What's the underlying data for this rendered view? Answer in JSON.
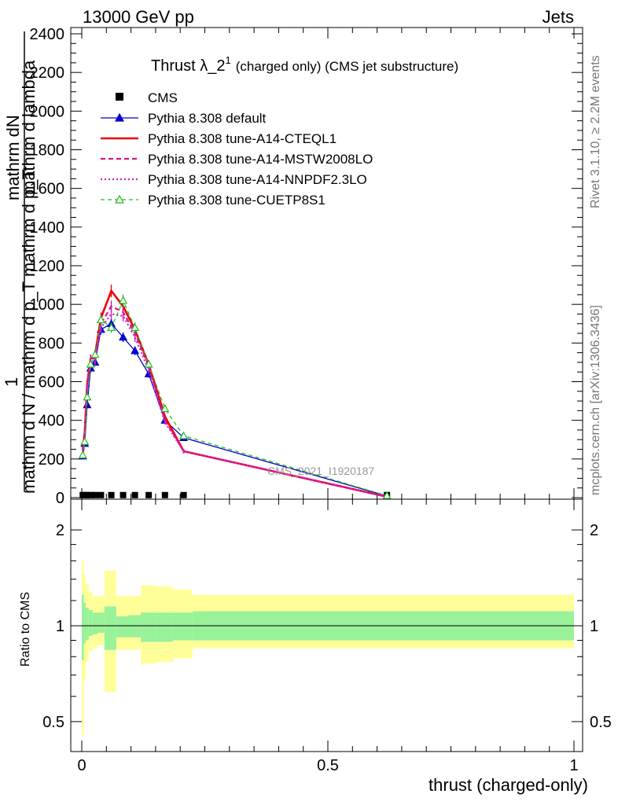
{
  "header": {
    "left": "13000 GeV pp",
    "right": "Jets"
  },
  "side_text": {
    "top": "Rivet 3.1.10, ≥ 2.2M events",
    "bottom": "mcplots.cern.ch [arXiv:1306.3436]"
  },
  "watermark": "CMS_2021_I1920187",
  "colors": {
    "cms": "#000000",
    "default": "#0000cc",
    "cteql1": "#ee0000",
    "mstw": "#e0108a",
    "nnpdf": "#cc22cc",
    "cuetp8s1": "#22bb22",
    "band_outer": "#ffff99",
    "band_inner": "#99f299"
  },
  "chart_data": [
    {
      "type": "line",
      "title": "Thrust λ_2",
      "title_sup": "1",
      "title_suffix": "(charged only) (CMS jet substructure)",
      "ylabel_top": "mathrm dN",
      "ylabel_top2": "mathrm d lambda",
      "ylabel_fraction_one": "1",
      "ylabel_main": "mathrm d N / mathrm d p_T mathrm d p_T",
      "xlim": [
        0,
        1
      ],
      "ylim": [
        0,
        2400
      ],
      "yticks": [
        "0",
        "200",
        "400",
        "600",
        "800",
        "1000",
        "1200",
        "1400",
        "1600",
        "1800",
        "2000",
        "2200",
        "2400"
      ],
      "x": [
        0.002,
        0.006,
        0.011,
        0.018,
        0.027,
        0.039,
        0.06,
        0.084,
        0.108,
        0.136,
        0.169,
        0.207,
        0.62
      ],
      "series": [
        {
          "name": "CMS",
          "key": "cms",
          "style": "marker-square",
          "values": [
            5,
            5,
            5,
            5,
            5,
            5,
            5,
            5,
            5,
            5,
            5,
            5,
            5
          ]
        },
        {
          "name": "Pythia 8.308 default",
          "key": "default",
          "style": "solid-triangle",
          "values": [
            215,
            280,
            480,
            670,
            700,
            870,
            900,
            830,
            760,
            640,
            400,
            310,
            8
          ]
        },
        {
          "name": "Pythia 8.308 tune-A14-CTEQL1",
          "key": "cteql1",
          "style": "solid-thick",
          "values": [
            250,
            340,
            590,
            720,
            740,
            930,
            1070,
            990,
            870,
            690,
            420,
            240,
            5
          ]
        },
        {
          "name": "Pythia 8.308 tune-A14-MSTW2008LO",
          "key": "mstw",
          "style": "dashed",
          "values": [
            240,
            330,
            580,
            720,
            720,
            900,
            990,
            960,
            850,
            680,
            400,
            240,
            5
          ]
        },
        {
          "name": "Pythia 8.308 tune-A14-NNPDF2.3LO",
          "key": "nnpdf",
          "style": "dotted",
          "values": [
            230,
            320,
            560,
            700,
            700,
            880,
            950,
            940,
            830,
            660,
            390,
            240,
            5
          ]
        },
        {
          "name": "Pythia 8.308 tune-CUETP8S1",
          "key": "cuetp8s1",
          "style": "dashed-triangle-open",
          "values": [
            220,
            290,
            520,
            690,
            740,
            920,
            880,
            1020,
            880,
            690,
            460,
            320,
            10
          ]
        }
      ],
      "legend_placement": "top-left"
    },
    {
      "type": "area",
      "ylabel": "Ratio to CMS",
      "xlabel": "thrust (charged-only)",
      "xlim": [
        0,
        1
      ],
      "ylim": [
        0.4,
        2.3
      ],
      "yscale": "log",
      "yticks": [
        "0.5",
        "1",
        "2"
      ],
      "xticks": [
        "0",
        "0.5",
        "1"
      ],
      "bins": [
        0,
        0.004,
        0.008,
        0.014,
        0.022,
        0.032,
        0.046,
        0.07,
        0.095,
        0.12,
        0.15,
        0.185,
        0.225,
        1.0
      ],
      "inner_lo": [
        0.78,
        0.88,
        0.9,
        0.93,
        0.94,
        0.95,
        0.84,
        0.92,
        0.92,
        0.89,
        0.89,
        0.9,
        0.9
      ],
      "inner_hi": [
        1.25,
        1.18,
        1.14,
        1.12,
        1.1,
        1.1,
        1.15,
        1.07,
        1.08,
        1.1,
        1.1,
        1.1,
        1.11
      ],
      "outer_lo": [
        0.45,
        0.68,
        0.77,
        0.83,
        0.85,
        0.87,
        0.62,
        0.84,
        0.84,
        0.76,
        0.77,
        0.79,
        0.85
      ],
      "outer_hi": [
        1.62,
        1.45,
        1.35,
        1.28,
        1.24,
        1.24,
        1.49,
        1.24,
        1.24,
        1.34,
        1.33,
        1.3,
        1.25
      ]
    }
  ]
}
